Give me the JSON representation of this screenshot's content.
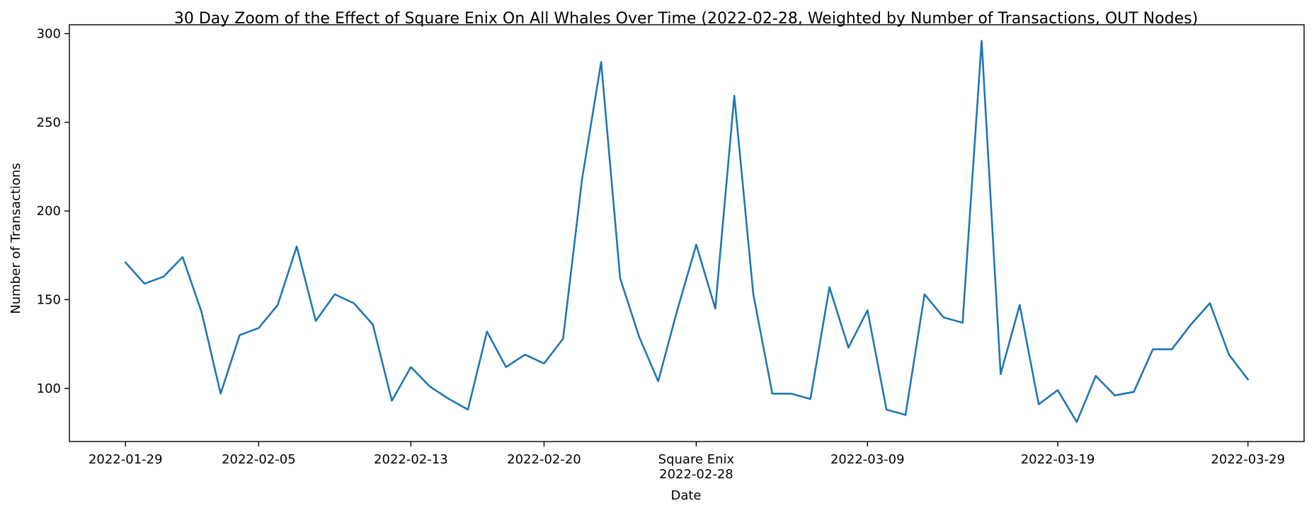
{
  "chart_data": {
    "type": "line",
    "title": "30 Day Zoom of the Effect of Square Enix On All Whales Over Time (2022-02-28, Weighted by Number of Transactions, OUT Nodes)",
    "xlabel": "Date",
    "ylabel": "Number of Transactions",
    "ylim": [
      70,
      305
    ],
    "yticks": [
      100,
      150,
      200,
      250,
      300
    ],
    "xticks": [
      {
        "date": "2022-01-29",
        "label": "2022-01-29"
      },
      {
        "date": "2022-02-05",
        "label": "2022-02-05"
      },
      {
        "date": "2022-02-13",
        "label": "2022-02-13"
      },
      {
        "date": "2022-02-20",
        "label": "2022-02-20"
      },
      {
        "date": "2022-02-28",
        "label": "Square Enix\n2022-02-28"
      },
      {
        "date": "2022-03-09",
        "label": "2022-03-09"
      },
      {
        "date": "2022-03-19",
        "label": "2022-03-19"
      },
      {
        "date": "2022-03-29",
        "label": "2022-03-29"
      }
    ],
    "line_color": "#1f77b4",
    "grid": false,
    "series": [
      {
        "x": [
          "2022-01-29",
          "2022-01-30",
          "2022-01-31",
          "2022-02-01",
          "2022-02-02",
          "2022-02-03",
          "2022-02-04",
          "2022-02-05",
          "2022-02-06",
          "2022-02-07",
          "2022-02-08",
          "2022-02-09",
          "2022-02-10",
          "2022-02-11",
          "2022-02-12",
          "2022-02-13",
          "2022-02-14",
          "2022-02-15",
          "2022-02-16",
          "2022-02-17",
          "2022-02-18",
          "2022-02-19",
          "2022-02-20",
          "2022-02-21",
          "2022-02-22",
          "2022-02-23",
          "2022-02-24",
          "2022-02-25",
          "2022-02-26",
          "2022-02-27",
          "2022-02-28",
          "2022-03-01",
          "2022-03-02",
          "2022-03-03",
          "2022-03-04",
          "2022-03-05",
          "2022-03-06",
          "2022-03-07",
          "2022-03-08",
          "2022-03-09",
          "2022-03-10",
          "2022-03-11",
          "2022-03-12",
          "2022-03-13",
          "2022-03-14",
          "2022-03-15",
          "2022-03-16",
          "2022-03-17",
          "2022-03-18",
          "2022-03-19",
          "2022-03-20",
          "2022-03-21",
          "2022-03-22",
          "2022-03-23",
          "2022-03-24",
          "2022-03-25",
          "2022-03-26",
          "2022-03-27",
          "2022-03-28",
          "2022-03-29"
        ],
        "values": [
          171,
          159,
          163,
          174,
          143,
          97,
          130,
          134,
          147,
          180,
          138,
          153,
          148,
          136,
          93,
          112,
          101,
          94,
          88,
          132,
          112,
          119,
          114,
          128,
          218,
          284,
          162,
          129,
          104,
          144,
          181,
          145,
          265,
          153,
          97,
          97,
          94,
          157,
          123,
          144,
          88,
          85,
          153,
          140,
          137,
          296,
          108,
          147,
          91,
          99,
          81,
          107,
          96,
          98,
          122,
          122,
          136,
          148,
          119,
          105
        ]
      }
    ]
  }
}
